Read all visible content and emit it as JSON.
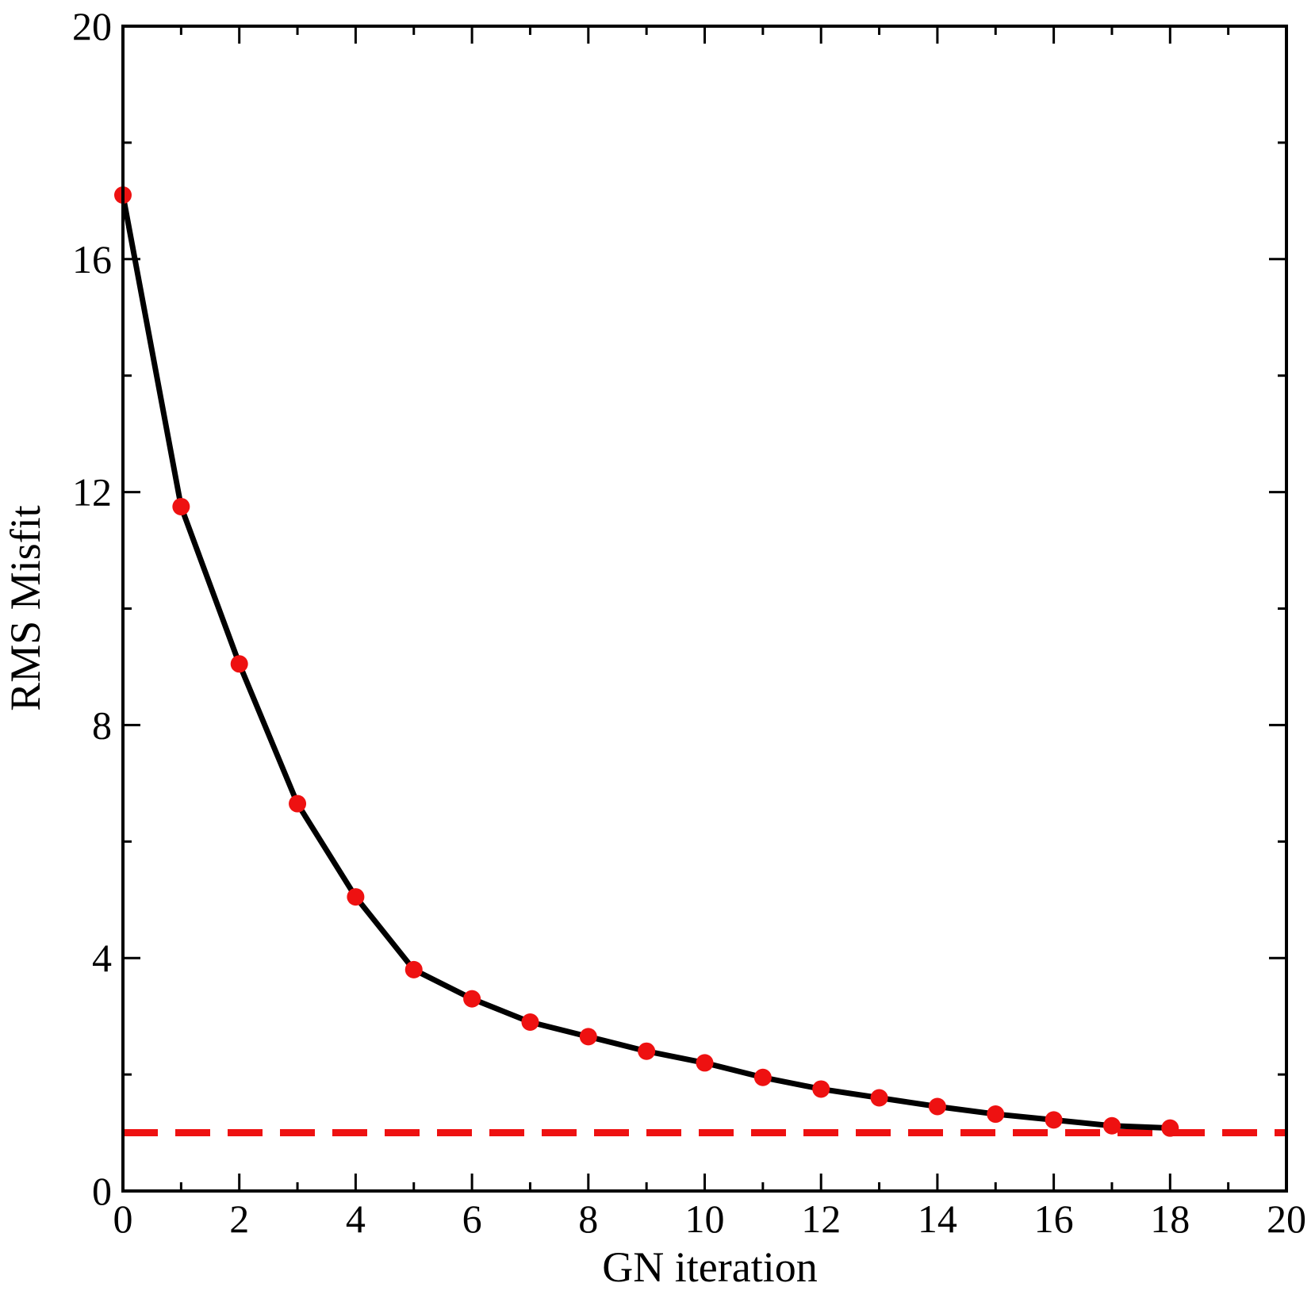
{
  "chart_data": {
    "type": "line",
    "xlabel": "GN iteration",
    "ylabel": "RMS Misfit",
    "xlim": [
      0,
      20
    ],
    "ylim": [
      0,
      20
    ],
    "x_ticks": [
      0,
      2,
      4,
      6,
      8,
      10,
      12,
      14,
      16,
      18,
      20
    ],
    "y_ticks": [
      0,
      4,
      8,
      12,
      16,
      20
    ],
    "x_minor_step": 1,
    "y_minor_step": 2,
    "grid": false,
    "series": [
      {
        "x": [
          0,
          1,
          2,
          3,
          4,
          5,
          6,
          7,
          8,
          9,
          10,
          11,
          12,
          13,
          14,
          15,
          16,
          17,
          18
        ],
        "y": [
          17.1,
          11.75,
          9.05,
          6.65,
          5.05,
          3.8,
          3.3,
          2.9,
          2.65,
          2.4,
          2.2,
          1.95,
          1.75,
          1.6,
          1.45,
          1.32,
          1.22,
          1.12,
          1.08
        ],
        "line_color": "#000000",
        "marker_color": "#ee1111"
      }
    ],
    "reference_line": {
      "y": 1.0,
      "style": "dashed",
      "color": "#ee1111"
    }
  }
}
